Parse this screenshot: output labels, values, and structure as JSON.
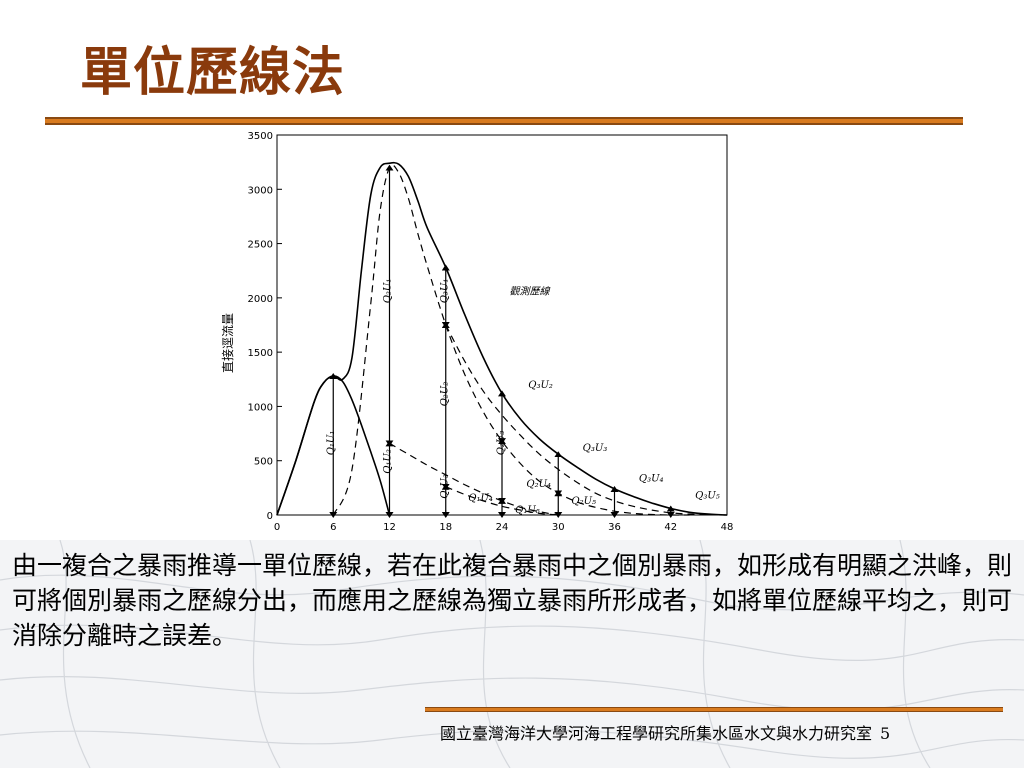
{
  "slide": {
    "title": "單位歷線法",
    "body": "由一複合之暴雨推導一單位歷線，若在此複合暴雨中之個別暴雨，如形成有明顯之洪峰，則可將個別暴雨之歷線分出，而應用之歷線為獨立暴雨所形成者，如將單位歷線平均之，則可消除分離時之誤差。",
    "footer": "國立臺灣海洋大學河海工程學研究所集水區水文與水力研究室",
    "page_number": "5",
    "accent_color": "#d97b1f",
    "title_color": "#8a3a0c"
  },
  "chart_data": {
    "type": "line",
    "ylabel": "直接逕流量",
    "x_ticks": [
      "0",
      "6",
      "12",
      "18",
      "24",
      "30",
      "36",
      "42",
      "48"
    ],
    "y_ticks": [
      "0",
      "500",
      "1000",
      "1500",
      "2000",
      "2500",
      "3000",
      "3500"
    ],
    "xlim": [
      0,
      48
    ],
    "ylim": [
      0,
      3500
    ],
    "series": [
      {
        "name": "觀測歷線",
        "style": "solid",
        "x": [
          0,
          2,
          4,
          5,
          6,
          7,
          8,
          9,
          10,
          11,
          12,
          13,
          14,
          15,
          16,
          18,
          20,
          22,
          24,
          26,
          28,
          30,
          32,
          34,
          36,
          38,
          40,
          42,
          44,
          46,
          48
        ],
        "y": [
          0,
          500,
          1050,
          1220,
          1280,
          1250,
          1450,
          2250,
          2950,
          3200,
          3240,
          3230,
          3120,
          2900,
          2650,
          2280,
          1850,
          1450,
          1120,
          880,
          700,
          560,
          440,
          330,
          240,
          170,
          110,
          60,
          25,
          8,
          0
        ]
      },
      {
        "name": "Q1U1",
        "style": "solid",
        "x": [
          0,
          2,
          4,
          5,
          6,
          7,
          8,
          9,
          10,
          11,
          12
        ],
        "y": [
          0,
          500,
          1050,
          1220,
          1280,
          1230,
          1060,
          830,
          580,
          320,
          0
        ]
      },
      {
        "name": "Q2U1",
        "style": "dashed",
        "x": [
          6,
          8,
          10,
          11,
          12,
          13,
          14,
          15,
          16,
          18,
          20,
          22,
          24,
          26,
          28,
          30,
          32,
          34,
          36,
          38,
          40,
          42,
          44
        ],
        "y": [
          0,
          420,
          1950,
          2800,
          3200,
          3150,
          2920,
          2600,
          2300,
          1750,
          1300,
          950,
          680,
          470,
          310,
          200,
          120,
          70,
          35,
          15,
          5,
          0,
          0
        ]
      },
      {
        "name": "Q1U2",
        "style": "dashed",
        "x": [
          12,
          14,
          16,
          18,
          20,
          22,
          24,
          26,
          28,
          30
        ],
        "y": [
          660,
          560,
          460,
          370,
          280,
          200,
          130,
          70,
          30,
          0
        ]
      },
      {
        "name": "Q3U1",
        "style": "dashed",
        "x": [
          18,
          20,
          22,
          24,
          26,
          28,
          30,
          32,
          34,
          36,
          38,
          40,
          42,
          44,
          46,
          48
        ],
        "y": [
          1750,
          1420,
          1140,
          920,
          730,
          560,
          420,
          300,
          200,
          130,
          80,
          45,
          20,
          8,
          2,
          0
        ]
      },
      {
        "name": "Q1U3",
        "style": "dashed",
        "x": [
          18,
          20,
          22,
          24,
          26,
          28,
          30
        ],
        "y": [
          260,
          190,
          130,
          80,
          45,
          15,
          0
        ]
      }
    ],
    "annotations": [
      {
        "label": "觀測歷線",
        "x": 24.8,
        "y": 2030
      },
      {
        "label": "Q₁U₁",
        "x": 6.1,
        "y": 550,
        "rotate": true
      },
      {
        "label": "Q₂U₁",
        "x": 12.1,
        "y": 1950,
        "rotate": true
      },
      {
        "label": "Q₁U₂",
        "x": 12.1,
        "y": 380,
        "rotate": true
      },
      {
        "label": "Q₃U₁",
        "x": 18.2,
        "y": 1950,
        "rotate": true
      },
      {
        "label": "Q₂U₂",
        "x": 18.2,
        "y": 1000,
        "rotate": true
      },
      {
        "label": "Q₁U₃",
        "x": 18.2,
        "y": 150,
        "rotate": true
      },
      {
        "label": "Q₂U₃",
        "x": 24.2,
        "y": 550,
        "rotate": true
      },
      {
        "label": "Q₃U₂",
        "x": 26.8,
        "y": 1170
      },
      {
        "label": "Q₃U₃",
        "x": 32.6,
        "y": 590
      },
      {
        "label": "Q₂U₄",
        "x": 26.6,
        "y": 260
      },
      {
        "label": "Q₁U₄",
        "x": 20.4,
        "y": 130
      },
      {
        "label": "Q₂U₅",
        "x": 31.4,
        "y": 100
      },
      {
        "label": "Q₁U₅",
        "x": 25.4,
        "y": 20
      },
      {
        "label": "Q₃U₄",
        "x": 38.6,
        "y": 310
      },
      {
        "label": "Q₃U₅",
        "x": 44.6,
        "y": 150
      }
    ],
    "arrows": [
      {
        "x": 6,
        "from": 0,
        "to": 1280
      },
      {
        "x": 12,
        "from": 0,
        "to": 660
      },
      {
        "x": 12,
        "from": 660,
        "to": 3200
      },
      {
        "x": 18,
        "from": 0,
        "to": 260
      },
      {
        "x": 18,
        "from": 260,
        "to": 1750
      },
      {
        "x": 18,
        "from": 1750,
        "to": 2280
      },
      {
        "x": 24,
        "from": 0,
        "to": 130
      },
      {
        "x": 24,
        "from": 130,
        "to": 680
      },
      {
        "x": 24,
        "from": 680,
        "to": 1120
      },
      {
        "x": 30,
        "from": 0,
        "to": 200
      },
      {
        "x": 30,
        "from": 200,
        "to": 560
      },
      {
        "x": 36,
        "from": 0,
        "to": 240
      },
      {
        "x": 42,
        "from": 0,
        "to": 60
      }
    ]
  }
}
